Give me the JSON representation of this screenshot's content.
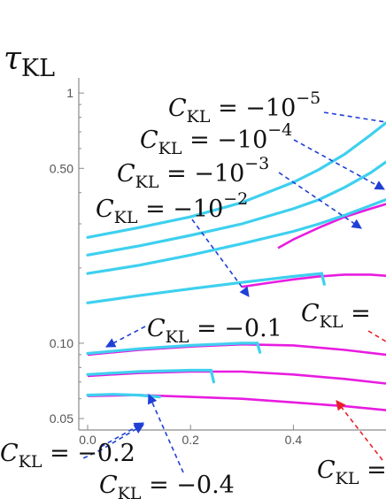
{
  "chart_data": {
    "type": "line",
    "y_axis_label": {
      "main": "τ",
      "sub": "KL"
    },
    "y_scale": "log",
    "x_range": [
      0.0,
      0.58
    ],
    "y_range": [
      0.045,
      1.15
    ],
    "x_ticks": [
      "0.0",
      "0.2",
      "0.4"
    ],
    "y_ticks": [
      "1",
      "0.50",
      "0.10",
      "0.05"
    ],
    "y_tick_values": [
      1,
      0.5,
      0.1,
      0.05
    ],
    "x_tick_values": [
      0.0,
      0.2,
      0.4
    ],
    "colors": {
      "cyan": "#3ed0ef",
      "magenta": "#e81ce0",
      "blue_arrow": "#1f3fd6",
      "red_arrow": "#e8202a",
      "axis": "#8a8a8a"
    },
    "cyan_series": [
      {
        "C": -1e-05,
        "x": [
          0.0,
          0.1,
          0.2,
          0.3,
          0.4,
          0.45,
          0.5,
          0.55,
          0.58
        ],
        "y": [
          0.265,
          0.29,
          0.32,
          0.365,
          0.44,
          0.495,
          0.57,
          0.68,
          0.76
        ]
      },
      {
        "C": -0.0001,
        "x": [
          0.0,
          0.1,
          0.2,
          0.3,
          0.4,
          0.45,
          0.5,
          0.55,
          0.58
        ],
        "y": [
          0.225,
          0.245,
          0.27,
          0.3,
          0.345,
          0.375,
          0.42,
          0.48,
          0.53
        ]
      },
      {
        "C": -0.001,
        "x": [
          0.0,
          0.1,
          0.2,
          0.3,
          0.4,
          0.45,
          0.5,
          0.55,
          0.58
        ],
        "y": [
          0.19,
          0.205,
          0.225,
          0.25,
          0.28,
          0.3,
          0.325,
          0.355,
          0.375
        ]
      },
      {
        "C": -0.01,
        "x": [
          0.0,
          0.1,
          0.2,
          0.3,
          0.4,
          0.455,
          0.46
        ],
        "y": [
          0.145,
          0.155,
          0.165,
          0.175,
          0.185,
          0.19,
          0.172
        ]
      },
      {
        "C": -0.1,
        "x": [
          0.0,
          0.1,
          0.2,
          0.3,
          0.33,
          0.335
        ],
        "y": [
          0.091,
          0.095,
          0.098,
          0.1,
          0.1,
          0.092
        ]
      },
      {
        "C": -0.2,
        "x": [
          0.0,
          0.1,
          0.2,
          0.24,
          0.245
        ],
        "y": [
          0.075,
          0.077,
          0.078,
          0.078,
          0.07
        ]
      },
      {
        "C": -0.4,
        "x": [
          0.0,
          0.05,
          0.1,
          0.14
        ],
        "y": [
          0.062,
          0.0625,
          0.062,
          0.061
        ]
      }
    ],
    "magenta_series": [
      {
        "x": [
          0.37,
          0.4,
          0.45,
          0.5,
          0.55,
          0.58
        ],
        "y": [
          0.24,
          0.26,
          0.29,
          0.32,
          0.345,
          0.36
        ]
      },
      {
        "x": [
          0.3,
          0.35,
          0.4,
          0.45,
          0.5,
          0.55,
          0.58
        ],
        "y": [
          0.168,
          0.174,
          0.18,
          0.185,
          0.188,
          0.188,
          0.186
        ]
      },
      {
        "x": [
          0.0,
          0.1,
          0.2,
          0.3,
          0.4,
          0.5,
          0.58
        ],
        "y": [
          0.09,
          0.094,
          0.097,
          0.099,
          0.098,
          0.094,
          0.09
        ]
      },
      {
        "x": [
          0.0,
          0.1,
          0.2,
          0.3,
          0.4,
          0.5,
          0.58
        ],
        "y": [
          0.074,
          0.076,
          0.077,
          0.077,
          0.075,
          0.072,
          0.069
        ]
      },
      {
        "x": [
          0.0,
          0.1,
          0.2,
          0.3,
          0.4,
          0.5,
          0.58
        ],
        "y": [
          0.0615,
          0.062,
          0.061,
          0.06,
          0.058,
          0.056,
          0.054
        ]
      }
    ],
    "annotations": [
      {
        "main": "C",
        "sub": "KL",
        "rest": " = −10",
        "sup": "−5"
      },
      {
        "main": "C",
        "sub": "KL",
        "rest": " = −10",
        "sup": "−4"
      },
      {
        "main": "C",
        "sub": "KL",
        "rest": " = −10",
        "sup": "−3"
      },
      {
        "main": "C",
        "sub": "KL",
        "rest": " = −10",
        "sup": "−2"
      },
      {
        "main": "C",
        "sub": "KL",
        "rest": " = −0.1",
        "sup": ""
      },
      {
        "main": "C",
        "sub": "KL",
        "rest": " = −0.2",
        "sup": ""
      },
      {
        "main": "C",
        "sub": "KL",
        "rest": " = −0.4",
        "sup": ""
      },
      {
        "main": "C",
        "sub": "KL",
        "rest": " =",
        "sup": ""
      },
      {
        "main": "C",
        "sub": "KL",
        "rest": " =",
        "sup": ""
      }
    ]
  }
}
